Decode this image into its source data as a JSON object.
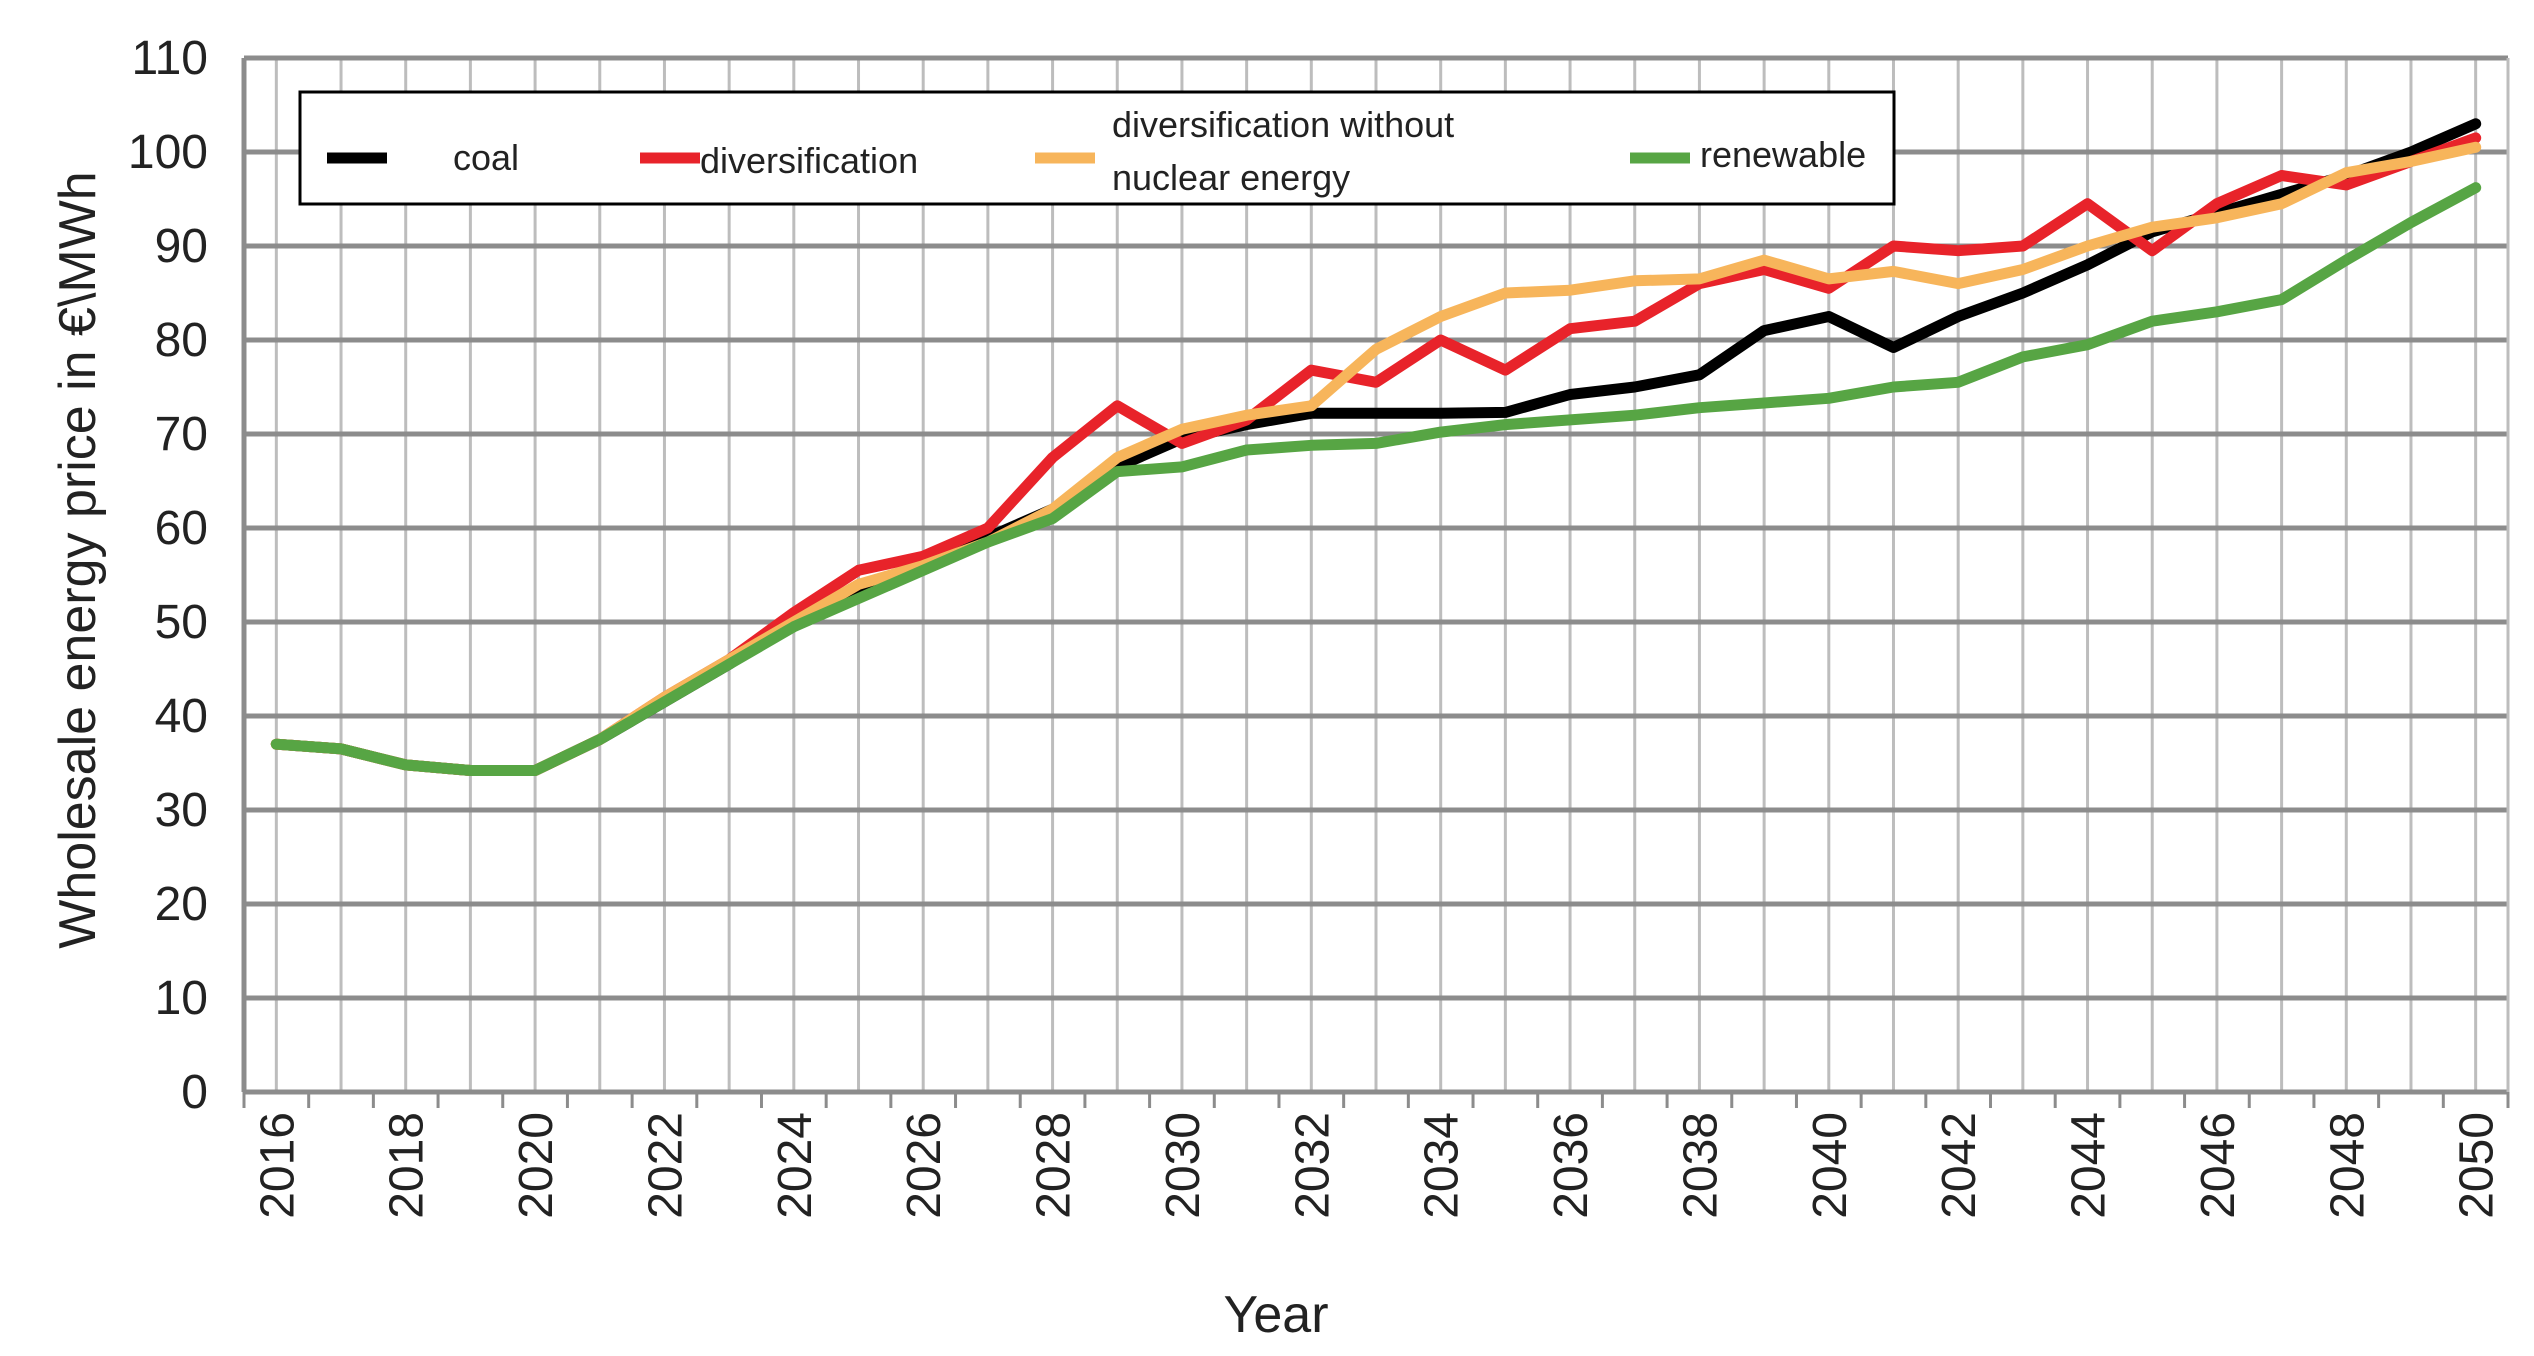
{
  "chart_data": {
    "type": "line",
    "title": "",
    "xlabel": "Year",
    "ylabel": "Wholesale energy price in  €\\MWh",
    "xlim": [
      2016,
      2050
    ],
    "ylim": [
      0,
      110
    ],
    "yticks": [
      0,
      10,
      20,
      30,
      40,
      50,
      60,
      70,
      80,
      90,
      100,
      110
    ],
    "xtick_labels": [
      "2016",
      "2018",
      "2020",
      "2022",
      "2024",
      "2026",
      "2028",
      "2030",
      "2032",
      "2034",
      "2036",
      "2038",
      "2040",
      "2042",
      "2044",
      "2046",
      "2048",
      "2050"
    ],
    "grid": true,
    "legend_position": "top",
    "x": [
      2016,
      2017,
      2018,
      2019,
      2020,
      2021,
      2022,
      2023,
      2024,
      2025,
      2026,
      2027,
      2028,
      2029,
      2030,
      2031,
      2032,
      2033,
      2034,
      2035,
      2036,
      2037,
      2038,
      2039,
      2040,
      2041,
      2042,
      2043,
      2044,
      2045,
      2046,
      2047,
      2048,
      2049,
      2050
    ],
    "series": [
      {
        "name": "coal",
        "color": "#000000",
        "values": [
          37,
          36.5,
          34.8,
          34.2,
          34.2,
          37.5,
          41.5,
          45.5,
          50,
          53,
          56,
          59,
          62,
          66.5,
          69.5,
          71,
          72.2,
          72.2,
          72.2,
          72.3,
          74.2,
          75,
          76.3,
          81,
          82.5,
          79.2,
          82.5,
          85,
          88,
          91.5,
          93.5,
          95.5,
          97.5,
          100,
          103
        ]
      },
      {
        "name": "diversification",
        "color": "#e8232a",
        "values": [
          37,
          36.5,
          34.8,
          34.2,
          34.2,
          37.5,
          42,
          46,
          51,
          55.5,
          57,
          60,
          67.5,
          73,
          69,
          71.5,
          76.8,
          75.5,
          80,
          76.8,
          81.2,
          82,
          86,
          87.5,
          85.5,
          90,
          89.5,
          90,
          94.5,
          89.5,
          94.5,
          97.5,
          96.5,
          99,
          101.5
        ]
      },
      {
        "name": "diversification without nuclear energy",
        "color": "#f7b55b",
        "values": [
          37,
          36.5,
          34.8,
          34.2,
          34.2,
          37.5,
          42,
          46,
          50,
          54,
          56,
          58.5,
          62,
          67.5,
          70.5,
          72,
          73,
          79,
          82.5,
          85,
          85.3,
          86.3,
          86.5,
          88.5,
          86.5,
          87.3,
          86,
          87.5,
          90,
          92,
          93,
          94.5,
          97.8,
          99,
          100.5
        ]
      },
      {
        "name": "renewable",
        "color": "#57a544",
        "values": [
          37,
          36.5,
          34.8,
          34.2,
          34.2,
          37.5,
          41.5,
          45.5,
          49.5,
          52.5,
          55.5,
          58.5,
          61,
          66,
          66.5,
          68.3,
          68.8,
          69,
          70.2,
          71,
          71.5,
          72,
          72.8,
          73.3,
          73.8,
          75,
          75.5,
          78.2,
          79.5,
          82,
          83,
          84.3,
          88.5,
          92.5,
          96.2
        ]
      }
    ]
  },
  "legend": {
    "items": [
      {
        "label_lines": [
          "coal"
        ],
        "color": "#000000"
      },
      {
        "label_lines": [
          "diversification"
        ],
        "color": "#e8232a"
      },
      {
        "label_lines": [
          "diversification without",
          "nuclear energy"
        ],
        "color": "#f7b55b"
      },
      {
        "label_lines": [
          "renewable"
        ],
        "color": "#57a544"
      }
    ]
  }
}
